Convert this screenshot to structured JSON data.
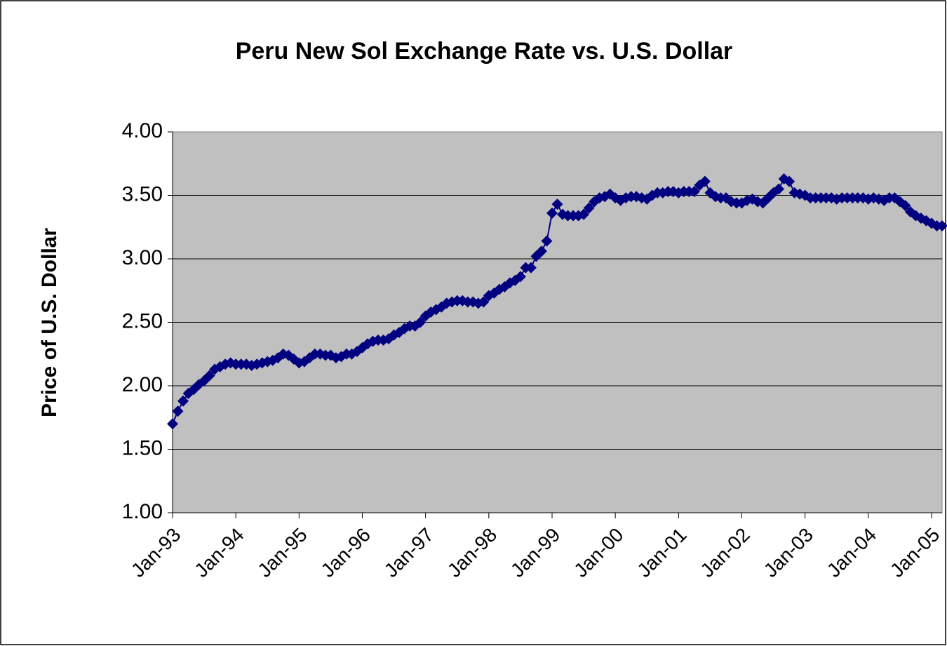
{
  "chart_data": {
    "type": "line",
    "title": "Peru New Sol Exchange Rate vs. U.S. Dollar",
    "y_label": "Price of U.S. Dollar",
    "categories": [
      "Jan-93",
      null,
      null,
      null,
      null,
      null,
      null,
      null,
      null,
      null,
      null,
      null,
      "Jan-94",
      null,
      null,
      null,
      null,
      null,
      null,
      null,
      null,
      null,
      null,
      null,
      "Jan-95",
      null,
      null,
      null,
      null,
      null,
      null,
      null,
      null,
      null,
      null,
      null,
      "Jan-96",
      null,
      null,
      null,
      null,
      null,
      null,
      null,
      null,
      null,
      null,
      null,
      "Jan-97",
      null,
      null,
      null,
      null,
      null,
      null,
      null,
      null,
      null,
      null,
      null,
      "Jan-98",
      null,
      null,
      null,
      null,
      null,
      null,
      null,
      null,
      null,
      null,
      null,
      "Jan-99",
      null,
      null,
      null,
      null,
      null,
      null,
      null,
      null,
      null,
      null,
      null,
      "Jan-00",
      null,
      null,
      null,
      null,
      null,
      null,
      null,
      null,
      null,
      null,
      null,
      "Jan-01",
      null,
      null,
      null,
      null,
      null,
      null,
      null,
      null,
      null,
      null,
      null,
      "Jan-02",
      null,
      null,
      null,
      null,
      null,
      null,
      null,
      null,
      null,
      null,
      null,
      "Jan-03",
      null,
      null,
      null,
      null,
      null,
      null,
      null,
      null,
      null,
      null,
      null,
      "Jan-04",
      null,
      null,
      null,
      null,
      null,
      null,
      null,
      null,
      null,
      null,
      null,
      "Jan-05",
      null,
      null
    ],
    "values": [
      1.7,
      1.8,
      1.88,
      1.94,
      1.97,
      2.01,
      2.04,
      2.08,
      2.13,
      2.15,
      2.17,
      2.18,
      2.17,
      2.17,
      2.17,
      2.16,
      2.17,
      2.18,
      2.19,
      2.2,
      2.22,
      2.25,
      2.24,
      2.21,
      2.18,
      2.19,
      2.22,
      2.25,
      2.25,
      2.24,
      2.24,
      2.22,
      2.23,
      2.25,
      2.25,
      2.27,
      2.3,
      2.33,
      2.35,
      2.36,
      2.36,
      2.37,
      2.4,
      2.42,
      2.45,
      2.47,
      2.47,
      2.5,
      2.55,
      2.58,
      2.6,
      2.62,
      2.65,
      2.66,
      2.67,
      2.67,
      2.66,
      2.66,
      2.65,
      2.66,
      2.71,
      2.73,
      2.76,
      2.78,
      2.81,
      2.83,
      2.86,
      2.93,
      2.93,
      3.02,
      3.06,
      3.14,
      3.36,
      3.43,
      3.35,
      3.34,
      3.34,
      3.34,
      3.35,
      3.4,
      3.45,
      3.48,
      3.49,
      3.51,
      3.48,
      3.46,
      3.48,
      3.49,
      3.49,
      3.48,
      3.47,
      3.5,
      3.52,
      3.52,
      3.53,
      3.53,
      3.52,
      3.53,
      3.53,
      3.53,
      3.58,
      3.61,
      3.52,
      3.49,
      3.48,
      3.48,
      3.45,
      3.44,
      3.44,
      3.46,
      3.47,
      3.45,
      3.44,
      3.48,
      3.52,
      3.55,
      3.63,
      3.61,
      3.52,
      3.51,
      3.5,
      3.48,
      3.48,
      3.48,
      3.48,
      3.48,
      3.47,
      3.48,
      3.48,
      3.48,
      3.48,
      3.48,
      3.47,
      3.48,
      3.47,
      3.46,
      3.48,
      3.48,
      3.45,
      3.42,
      3.37,
      3.34,
      3.32,
      3.3,
      3.28,
      3.26,
      3.26
    ],
    "color": "#000080",
    "marker": "diamond",
    "plot_background": "#c0c0c0",
    "ylim": [
      1,
      4
    ],
    "yticks": [
      {
        "value": 1,
        "label": "1.00"
      },
      {
        "value": 1.5,
        "label": "1.50"
      },
      {
        "value": 2,
        "label": "2.00"
      },
      {
        "value": 2.5,
        "label": "2.50"
      },
      {
        "value": 3,
        "label": "3.00"
      },
      {
        "value": 3.5,
        "label": "3.50"
      },
      {
        "value": 4,
        "label": "4.00"
      }
    ],
    "grid": true
  }
}
